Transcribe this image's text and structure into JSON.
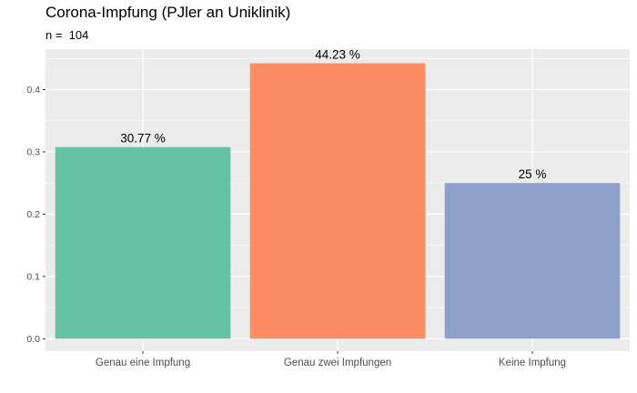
{
  "chart_data": {
    "type": "bar",
    "title": "Corona-Impfung (PJler an Uniklinik)",
    "subtitle": "n =  104",
    "categories": [
      "Genau eine Impfung",
      "Genau zwei Impfungen",
      "Keine Impfung"
    ],
    "values": [
      0.3077,
      0.4423,
      0.25
    ],
    "data_labels": [
      "30.77 %",
      "44.23 %",
      "25 %"
    ],
    "colors": [
      "#66C2A5",
      "#FC8D62",
      "#8DA0CB"
    ],
    "y_ticks": [
      0.0,
      0.1,
      0.2,
      0.3,
      0.4
    ],
    "y_tick_labels": [
      "0.0",
      "0.1",
      "0.2",
      "0.3",
      "0.4"
    ],
    "ylim": [
      -0.02,
      0.465
    ],
    "xlabel": "",
    "ylabel": "",
    "grid": true,
    "panel_background": "#EBEBEB",
    "grid_color": "#FFFFFF"
  }
}
